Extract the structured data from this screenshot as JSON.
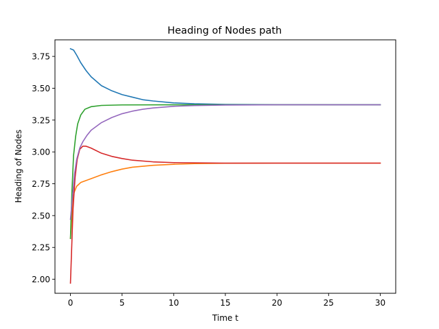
{
  "chart_data": {
    "type": "line",
    "title": "Heading of Nodes path",
    "xlabel": "Time t",
    "ylabel": "Heading of Nodes",
    "xlim": [
      -1.5,
      31.5
    ],
    "ylim": [
      1.89,
      3.88
    ],
    "xticks": [
      0,
      5,
      10,
      15,
      20,
      25,
      30
    ],
    "xtick_labels": [
      "0",
      "5",
      "10",
      "15",
      "20",
      "25",
      "30"
    ],
    "yticks": [
      2.0,
      2.25,
      2.5,
      2.75,
      3.0,
      3.25,
      3.5,
      3.75
    ],
    "ytick_labels": [
      "2.00",
      "2.25",
      "2.50",
      "2.75",
      "3.00",
      "3.25",
      "3.50",
      "3.75"
    ],
    "grid": false,
    "legend": "none",
    "series": [
      {
        "color": "#1f77b4",
        "points": [
          [
            0,
            3.81
          ],
          [
            0.3,
            3.8
          ],
          [
            0.6,
            3.76
          ],
          [
            1,
            3.7
          ],
          [
            1.5,
            3.64
          ],
          [
            2,
            3.59
          ],
          [
            3,
            3.52
          ],
          [
            4,
            3.48
          ],
          [
            5,
            3.45
          ],
          [
            6,
            3.43
          ],
          [
            7,
            3.41
          ],
          [
            8,
            3.4
          ],
          [
            10,
            3.385
          ],
          [
            12,
            3.378
          ],
          [
            15,
            3.373
          ],
          [
            20,
            3.371
          ],
          [
            30,
            3.37
          ]
        ]
      },
      {
        "color": "#ff7f0e",
        "points": [
          [
            0,
            2.32
          ],
          [
            0.1,
            2.45
          ],
          [
            0.2,
            2.6
          ],
          [
            0.35,
            2.68
          ],
          [
            0.6,
            2.73
          ],
          [
            1,
            2.76
          ],
          [
            1.5,
            2.775
          ],
          [
            2,
            2.79
          ],
          [
            3,
            2.82
          ],
          [
            4,
            2.845
          ],
          [
            5,
            2.865
          ],
          [
            6,
            2.88
          ],
          [
            8,
            2.895
          ],
          [
            10,
            2.903
          ],
          [
            12,
            2.908
          ],
          [
            15,
            2.911
          ],
          [
            20,
            2.912
          ],
          [
            30,
            2.912
          ]
        ]
      },
      {
        "color": "#2ca02c",
        "points": [
          [
            0,
            2.32
          ],
          [
            0.15,
            2.7
          ],
          [
            0.3,
            2.97
          ],
          [
            0.5,
            3.12
          ],
          [
            0.7,
            3.22
          ],
          [
            1,
            3.29
          ],
          [
            1.4,
            3.335
          ],
          [
            2,
            3.355
          ],
          [
            3,
            3.365
          ],
          [
            5,
            3.369
          ],
          [
            10,
            3.37
          ],
          [
            30,
            3.37
          ]
        ]
      },
      {
        "color": "#d62728",
        "points": [
          [
            0,
            1.97
          ],
          [
            0.1,
            2.2
          ],
          [
            0.25,
            2.55
          ],
          [
            0.45,
            2.8
          ],
          [
            0.65,
            2.94
          ],
          [
            0.9,
            3.02
          ],
          [
            1.2,
            3.045
          ],
          [
            1.5,
            3.045
          ],
          [
            2,
            3.03
          ],
          [
            3,
            2.99
          ],
          [
            4,
            2.965
          ],
          [
            5,
            2.948
          ],
          [
            6,
            2.935
          ],
          [
            8,
            2.922
          ],
          [
            10,
            2.916
          ],
          [
            15,
            2.912
          ],
          [
            30,
            2.912
          ]
        ]
      },
      {
        "color": "#9467bd",
        "points": [
          [
            0,
            2.47
          ],
          [
            0.2,
            2.65
          ],
          [
            0.4,
            2.83
          ],
          [
            0.6,
            2.94
          ],
          [
            0.9,
            3.03
          ],
          [
            1.2,
            3.08
          ],
          [
            1.6,
            3.13
          ],
          [
            2,
            3.17
          ],
          [
            3,
            3.23
          ],
          [
            4,
            3.27
          ],
          [
            5,
            3.3
          ],
          [
            6,
            3.32
          ],
          [
            7,
            3.335
          ],
          [
            8,
            3.345
          ],
          [
            10,
            3.358
          ],
          [
            12,
            3.364
          ],
          [
            15,
            3.368
          ],
          [
            20,
            3.37
          ],
          [
            30,
            3.37
          ]
        ]
      }
    ]
  }
}
